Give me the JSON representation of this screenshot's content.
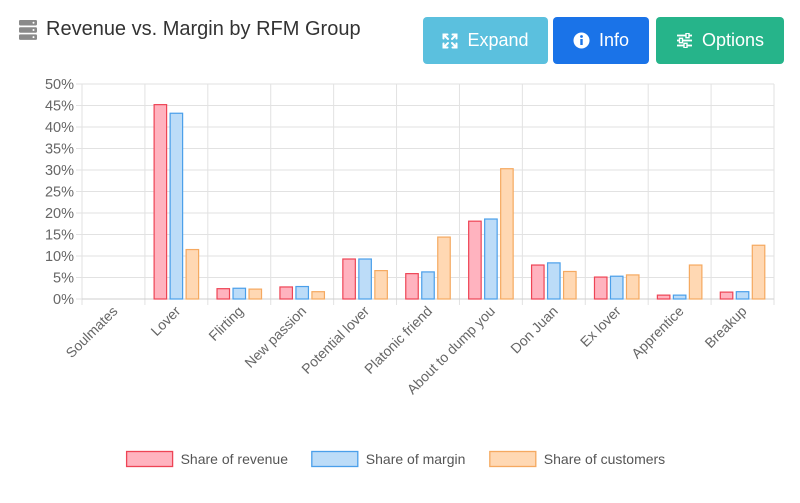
{
  "header": {
    "title": "Revenue vs. Margin by RFM Group",
    "title_icon": "server-icon",
    "buttons": {
      "expand": {
        "label": "Expand",
        "icon": "expand-icon",
        "color": "#5bc0de"
      },
      "info": {
        "label": "Info",
        "icon": "info-icon",
        "color": "#1a73e8"
      },
      "options": {
        "label": "Options",
        "icon": "sliders-icon",
        "color": "#26b48a"
      }
    }
  },
  "chart_data": {
    "type": "bar",
    "title": "Revenue vs. Margin by RFM Group",
    "xlabel": "",
    "ylabel": "",
    "ylim": [
      0,
      50
    ],
    "yticks": [
      0,
      5,
      10,
      15,
      20,
      25,
      30,
      35,
      40,
      45,
      50
    ],
    "ytick_suffix": "%",
    "grid": true,
    "legend_position": "bottom",
    "categories": [
      "Soulmates",
      "Lover",
      "Flirting",
      "New passion",
      "Potential lover",
      "Platonic friend",
      "About to dump you",
      "Don Juan",
      "Ex lover",
      "Apprentice",
      "Breakup"
    ],
    "series": [
      {
        "name": "Share of revenue",
        "fill": "#ffb3bf",
        "stroke": "#ee4455",
        "values": [
          0,
          45.2,
          2.4,
          2.8,
          9.3,
          5.9,
          18.1,
          7.9,
          5.1,
          0.9,
          1.6
        ]
      },
      {
        "name": "Share of margin",
        "fill": "#bcdcf8",
        "stroke": "#4a9fea",
        "values": [
          0,
          43.2,
          2.5,
          2.9,
          9.3,
          6.3,
          18.6,
          8.4,
          5.3,
          0.9,
          1.7
        ]
      },
      {
        "name": "Share of customers",
        "fill": "#ffd8b3",
        "stroke": "#f5a960",
        "values": [
          0,
          11.5,
          2.3,
          1.7,
          6.6,
          14.4,
          30.3,
          6.4,
          5.6,
          7.9,
          12.5
        ]
      }
    ]
  }
}
